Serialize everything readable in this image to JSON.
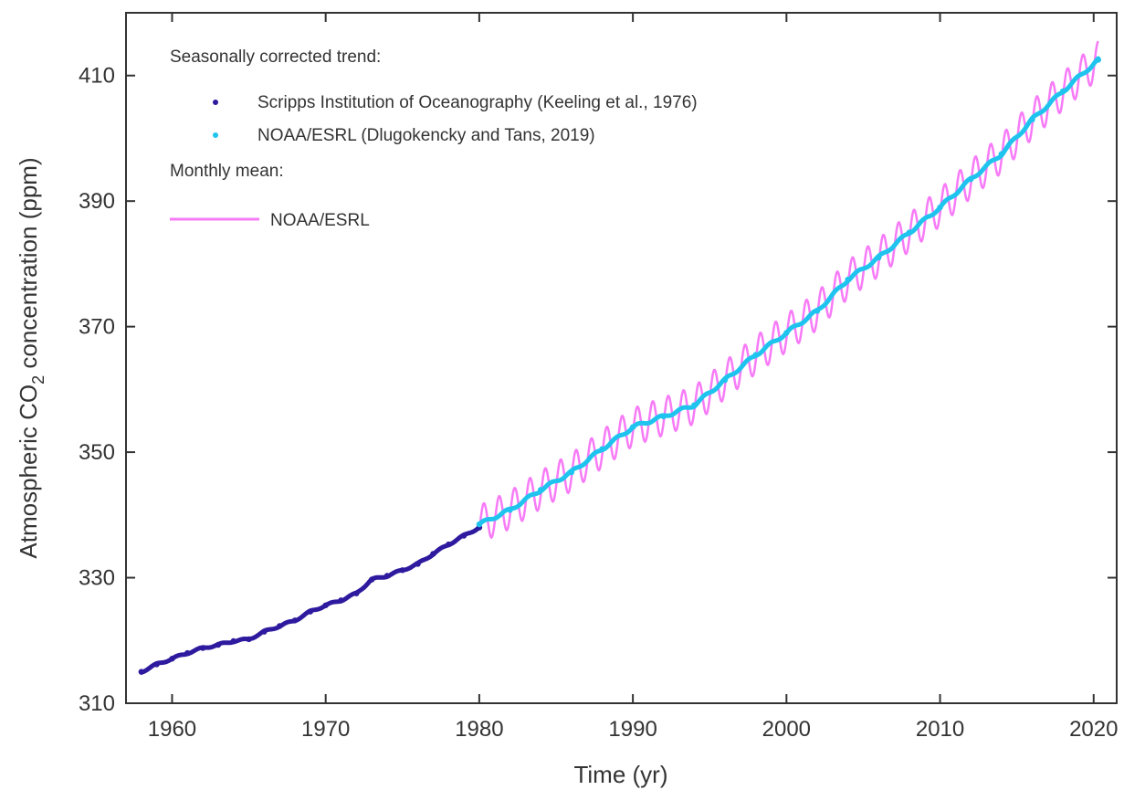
{
  "chart_data": {
    "type": "line",
    "title": "",
    "xlabel": "Time (yr)",
    "ylabel": {
      "prefix": "Atmospheric CO",
      "subscript": "2",
      "suffix": " concentration (ppm)"
    },
    "xlim": [
      1957,
      2021.5
    ],
    "ylim": [
      310,
      420
    ],
    "xticks": [
      1960,
      1970,
      1980,
      1990,
      2000,
      2010,
      2020
    ],
    "yticks": [
      310,
      330,
      350,
      370,
      390,
      410
    ],
    "grid": false,
    "legend": {
      "placement": "top-left",
      "heading_trend": "Seasonally corrected trend:",
      "heading_monthly": "Monthly mean:"
    },
    "series": [
      {
        "name": "Scripps Institution of Oceanography (Keeling et al., 1976)",
        "style": "points",
        "color": "#2e1a9e",
        "x": [
          1958.0,
          1959.0,
          1960.0,
          1961.0,
          1962.0,
          1963.0,
          1964.0,
          1965.0,
          1966.0,
          1967.0,
          1968.0,
          1969.0,
          1970.0,
          1971.0,
          1972.0,
          1973.0,
          1974.0,
          1975.0,
          1976.0,
          1977.0,
          1978.0,
          1979.0,
          1980.0
        ],
        "y": [
          315.0,
          316.2,
          317.1,
          318.0,
          318.8,
          319.3,
          319.9,
          320.2,
          321.4,
          322.3,
          323.2,
          324.6,
          325.6,
          326.4,
          327.5,
          329.7,
          330.3,
          331.2,
          332.2,
          333.8,
          335.3,
          336.7,
          338.0
        ]
      },
      {
        "name": "NOAA/ESRL (Dlugokencky and Tans, 2019)",
        "style": "points",
        "color": "#1fc4ee",
        "x": [
          1980.0,
          1982.0,
          1984.0,
          1986.0,
          1988.0,
          1990.0,
          1992.0,
          1994.0,
          1996.0,
          1998.0,
          2000.0,
          2002.0,
          2004.0,
          2006.0,
          2008.0,
          2010.0,
          2012.0,
          2014.0,
          2016.0,
          2018.0,
          2020.3
        ],
        "y": [
          338.5,
          340.8,
          344.0,
          346.8,
          350.5,
          354.0,
          355.7,
          357.5,
          361.5,
          365.5,
          369.0,
          372.5,
          377.5,
          381.0,
          385.0,
          389.0,
          393.5,
          397.5,
          403.0,
          407.5,
          412.5
        ]
      },
      {
        "name": "NOAA/ESRL",
        "style": "line",
        "color": "#f77bf7",
        "seasonal_amplitude": 3.0,
        "x": [
          1980.0,
          1982.0,
          1984.0,
          1986.0,
          1988.0,
          1990.0,
          1992.0,
          1994.0,
          1996.0,
          1998.0,
          2000.0,
          2002.0,
          2004.0,
          2006.0,
          2008.0,
          2010.0,
          2012.0,
          2014.0,
          2016.0,
          2018.0,
          2020.3
        ],
        "y": [
          338.5,
          340.8,
          344.0,
          346.8,
          350.5,
          354.0,
          355.7,
          357.5,
          361.5,
          365.5,
          369.0,
          372.5,
          377.5,
          381.0,
          385.0,
          389.0,
          393.5,
          397.5,
          403.0,
          407.5,
          412.5
        ]
      }
    ]
  }
}
